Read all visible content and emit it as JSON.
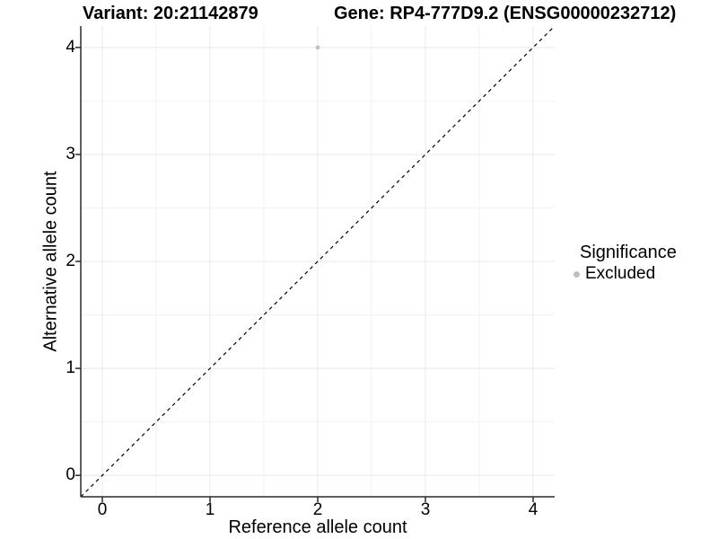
{
  "title": {
    "variant": "Variant: 20:21142879",
    "gene": "Gene: RP4-777D9.2 (ENSG00000232712)"
  },
  "legend": {
    "title": "Significance",
    "items": [
      {
        "label": "Excluded",
        "color": "#bebebe"
      }
    ]
  },
  "axes": {
    "xlabel": "Reference allele count",
    "ylabel": "Alternative allele count"
  },
  "colors": {
    "background": "#ffffff",
    "major_grid": "#e8e8e8",
    "minor_grid": "#f2f2f2",
    "axis_line": "#2a2a2a",
    "reference_line": "#000000",
    "point": "#bebebe",
    "text": "#000000"
  },
  "chart_data": {
    "type": "scatter",
    "title": "Variant: 20:21142879    Gene: RP4-777D9.2 (ENSG00000232712)",
    "xlabel": "Reference allele count",
    "ylabel": "Alternative allele count",
    "xlim": [
      -0.2,
      4.2
    ],
    "ylim": [
      -0.2,
      4.2
    ],
    "xticks": [
      0,
      1,
      2,
      3,
      4
    ],
    "yticks": [
      0,
      1,
      2,
      3,
      4
    ],
    "x_minor_ticks": [
      0.5,
      1.5,
      2.5,
      3.5
    ],
    "y_minor_ticks": [
      0.5,
      1.5,
      2.5,
      3.5
    ],
    "grid": true,
    "legend_title": "Significance",
    "legend_position": "right",
    "series": [
      {
        "name": "Excluded",
        "color": "#bebebe",
        "points": [
          {
            "x": 2,
            "y": 4
          }
        ]
      }
    ],
    "reference_line": {
      "style": "dashed",
      "slope": 1,
      "intercept": 0,
      "color": "#000000"
    }
  }
}
